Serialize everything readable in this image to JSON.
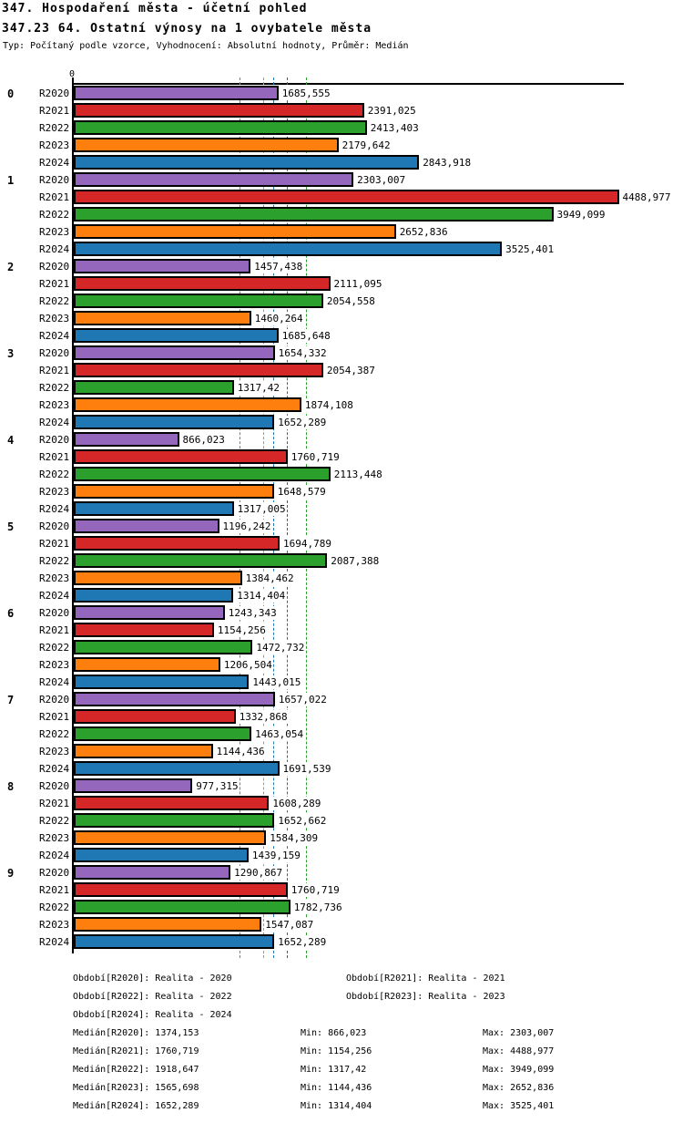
{
  "header": {
    "title": "347. Hospodaření města - účetní pohled",
    "subtitle": "347.23 64. Ostatní výnosy na 1 ovybatele města",
    "meta": "Typ: Počítaný podle vzorce, Vyhodnocení: Absolutní hodnoty, Průměr: Medián"
  },
  "chart_data": {
    "type": "bar",
    "orientation": "horizontal",
    "title": "347.23 64. Ostatní výnosy na 1 ovybatele města",
    "categories": [
      "0",
      "1",
      "2",
      "3",
      "4",
      "5",
      "6",
      "7",
      "8",
      "9"
    ],
    "axis": {
      "zero_label": "0",
      "xlim": [
        0,
        4500
      ],
      "grid": "median-lines-only"
    },
    "series": [
      {
        "name": "R2020",
        "color": "#9467bd",
        "values": [
          1685.555,
          2303.007,
          1457.438,
          1654.332,
          866.023,
          1196.242,
          1243.343,
          1657.022,
          977.315,
          1290.867
        ],
        "labels": [
          "1685,555",
          "2303,007",
          "1457,438",
          "1654,332",
          "866,023",
          "1196,242",
          "1243,343",
          "1657,022",
          "977,315",
          "1290,867"
        ],
        "median": 1374.153
      },
      {
        "name": "R2021",
        "color": "#d62728",
        "values": [
          2391.025,
          4488.977,
          2111.095,
          2054.387,
          1760.719,
          1694.789,
          1154.256,
          1332.868,
          1608.289,
          1760.719
        ],
        "labels": [
          "2391,025",
          "4488,977",
          "2111,095",
          "2054,387",
          "1760,719",
          "1694,789",
          "1154,256",
          "1332,868",
          "1608,289",
          "1760,719"
        ],
        "median": 1760.719
      },
      {
        "name": "R2022",
        "color": "#2ca02c",
        "values": [
          2413.403,
          3949.099,
          2054.558,
          1317.42,
          2113.448,
          2087.388,
          1472.732,
          1463.054,
          1652.662,
          1782.736
        ],
        "labels": [
          "2413,403",
          "3949,099",
          "2054,558",
          "1317,42",
          "2113,448",
          "2087,388",
          "1472,732",
          "1463,054",
          "1652,662",
          "1782,736"
        ],
        "median": 1918.647
      },
      {
        "name": "R2023",
        "color": "#ff7f0e",
        "values": [
          2179.642,
          2652.836,
          1460.264,
          1874.108,
          1648.579,
          1384.462,
          1206.504,
          1144.436,
          1584.309,
          1547.087
        ],
        "labels": [
          "2179,642",
          "2652,836",
          "1460,264",
          "1874,108",
          "1648,579",
          "1384,462",
          "1206,504",
          "1144,436",
          "1584,309",
          "1547,087"
        ],
        "median": 1565.698
      },
      {
        "name": "R2024",
        "color": "#1f77b4",
        "values": [
          2843.918,
          3525.401,
          1685.648,
          1652.289,
          1317.005,
          1314.404,
          1443.015,
          1691.539,
          1439.159,
          1652.289
        ],
        "labels": [
          "2843,918",
          "3525,401",
          "1685,648",
          "1652,289",
          "1317,005",
          "1314,404",
          "1443,015",
          "1691,539",
          "1439,159",
          "1652,289"
        ],
        "median": 1652.289
      }
    ]
  },
  "footer": {
    "periods": [
      {
        "label": "Období[R2020]: Realita - 2020",
        "col": 0,
        "row": 0
      },
      {
        "label": "Období[R2021]: Realita - 2021",
        "col": 1,
        "row": 0
      },
      {
        "label": "Období[R2022]: Realita - 2022",
        "col": 0,
        "row": 1
      },
      {
        "label": "Období[R2023]: Realita - 2023",
        "col": 1,
        "row": 1
      },
      {
        "label": "Období[R2024]: Realita - 2024",
        "col": 0,
        "row": 2
      }
    ],
    "stats": [
      {
        "median": "Medián[R2020]: 1374,153",
        "min": "Min: 866,023",
        "max": "Max: 2303,007"
      },
      {
        "median": "Medián[R2021]: 1760,719",
        "min": "Min: 1154,256",
        "max": "Max: 4488,977"
      },
      {
        "median": "Medián[R2022]: 1918,647",
        "min": "Min: 1317,42",
        "max": "Max: 3949,099"
      },
      {
        "median": "Medián[R2023]: 1565,698",
        "min": "Min: 1144,436",
        "max": "Max: 2652,836"
      },
      {
        "median": "Medián[R2024]: 1652,289",
        "min": "Min: 1314,404",
        "max": "Max: 3525,401"
      }
    ]
  }
}
